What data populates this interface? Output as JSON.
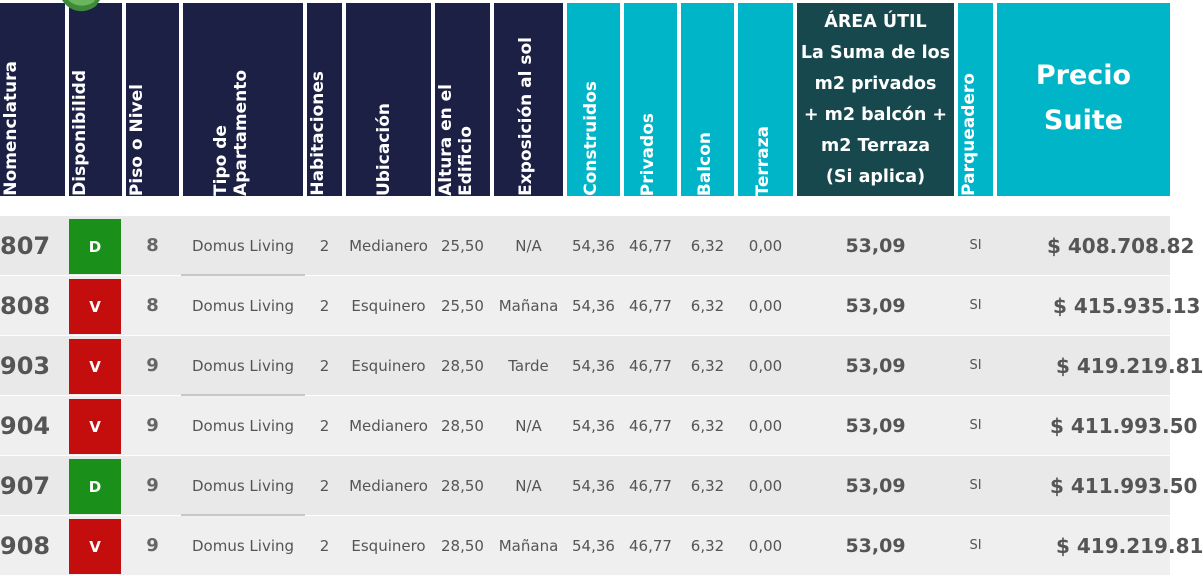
{
  "colors": {
    "header_navy": "#1d2045",
    "header_cyan": "#00b5c8",
    "header_teal": "#17484d",
    "badge_disponible": "#1a8f1a",
    "badge_vendido": "#c40e0e"
  },
  "header": {
    "nomenclatura": "Nomenclatura",
    "disponibilidad": "Disponibilidd",
    "piso": "Piso o Nivel",
    "tipo": "Tipo de\nApartamento",
    "habitaciones": "Habitaciones",
    "ubicacion": "Ubicación",
    "altura": "Altura en el\nEdificio",
    "exposicion": "Exposición al sol",
    "construidos": "Construidos",
    "privados": "Privados",
    "balcon": "Balcon",
    "terraza": "Terraza",
    "area_util": "ÁREA ÚTIL\nLa Suma de los\nm2 privados\n+ m2 balcón +\nm2 Terraza\n(Si aplica)",
    "parqueadero": "Parqueadero",
    "precio": "Precio\nSuite"
  },
  "rows": [
    {
      "nom": "807",
      "disp": "D",
      "piso": "8",
      "tipo": "Domus Living",
      "hab": "2",
      "ubic": "Medianero",
      "altura": "25,50",
      "expo": "N/A",
      "construidos": "54,36",
      "privados": "46,77",
      "balcon": "6,32",
      "terraza": "0,00",
      "area": "53,09",
      "parq": "SI",
      "precio": "$ 408.708.82"
    },
    {
      "nom": "808",
      "disp": "V",
      "piso": "8",
      "tipo": "Domus Living",
      "hab": "2",
      "ubic": "Esquinero",
      "altura": "25,50",
      "expo": "Mañana",
      "construidos": "54,36",
      "privados": "46,77",
      "balcon": "6,32",
      "terraza": "0,00",
      "area": "53,09",
      "parq": "SI",
      "precio": "$ 415.935.13"
    },
    {
      "nom": "903",
      "disp": "V",
      "piso": "9",
      "tipo": "Domus Living",
      "hab": "2",
      "ubic": "Esquinero",
      "altura": "28,50",
      "expo": "Tarde",
      "construidos": "54,36",
      "privados": "46,77",
      "balcon": "6,32",
      "terraza": "0,00",
      "area": "53,09",
      "parq": "SI",
      "precio": "$ 419.219.81"
    },
    {
      "nom": "904",
      "disp": "V",
      "piso": "9",
      "tipo": "Domus Living",
      "hab": "2",
      "ubic": "Medianero",
      "altura": "28,50",
      "expo": "N/A",
      "construidos": "54,36",
      "privados": "46,77",
      "balcon": "6,32",
      "terraza": "0,00",
      "area": "53,09",
      "parq": "SI",
      "precio": "$ 411.993.50"
    },
    {
      "nom": "907",
      "disp": "D",
      "piso": "9",
      "tipo": "Domus Living",
      "hab": "2",
      "ubic": "Medianero",
      "altura": "28,50",
      "expo": "N/A",
      "construidos": "54,36",
      "privados": "46,77",
      "balcon": "6,32",
      "terraza": "0,00",
      "area": "53,09",
      "parq": "SI",
      "precio": "$ 411.993.50"
    },
    {
      "nom": "908",
      "disp": "V",
      "piso": "9",
      "tipo": "Domus Living",
      "hab": "2",
      "ubic": "Esquinero",
      "altura": "28,50",
      "expo": "Mañana",
      "construidos": "54,36",
      "privados": "46,77",
      "balcon": "6,32",
      "terraza": "0,00",
      "area": "53,09",
      "parq": "SI",
      "precio": "$ 419.219.81"
    }
  ]
}
